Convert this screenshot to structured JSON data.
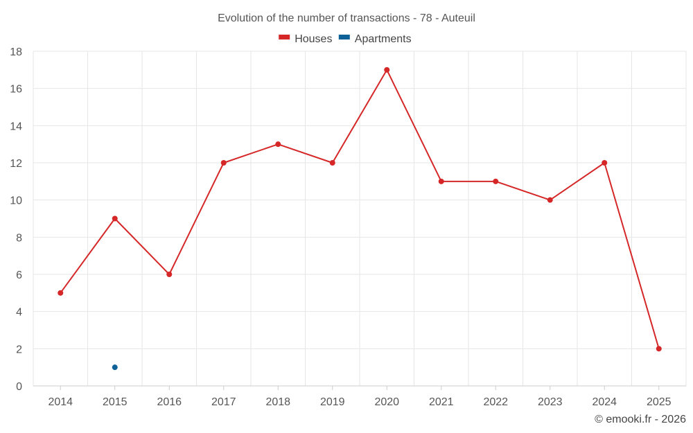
{
  "chart_data": {
    "type": "line",
    "title": "Evolution of the number of transactions - 78 - Auteuil",
    "categories": [
      "2014",
      "2015",
      "2016",
      "2017",
      "2018",
      "2019",
      "2020",
      "2021",
      "2022",
      "2023",
      "2024",
      "2025"
    ],
    "series": [
      {
        "name": "Houses",
        "color": "#d62728",
        "values": [
          5,
          9,
          6,
          12,
          13,
          12,
          17,
          11,
          11,
          10,
          12,
          2
        ]
      },
      {
        "name": "Apartments",
        "color": "#0e6197",
        "values": [
          null,
          1,
          null,
          null,
          null,
          null,
          null,
          null,
          null,
          null,
          null,
          null
        ]
      }
    ],
    "ylim": [
      0,
      18
    ],
    "yticks": [
      0,
      2,
      4,
      6,
      8,
      10,
      12,
      14,
      16,
      18
    ],
    "xlabel": "",
    "ylabel": "",
    "grid": true,
    "legend_position": "top-center"
  },
  "footer": {
    "credit": "© emooki.fr - 2026"
  }
}
